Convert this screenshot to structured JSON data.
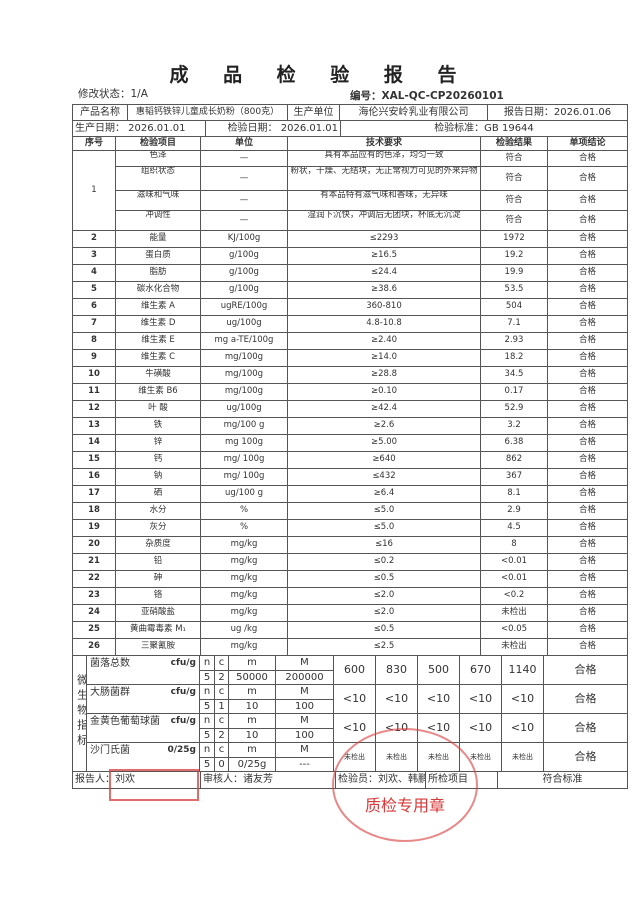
{
  "title": "成 品 检 验 报 告",
  "revision": "修改状态：1/A",
  "code": "编号：XAL-QC-CP20260101",
  "header": {
    "product_label": "产品名称",
    "product": "惠韬钙铁锌儿童成长奶粉（800克）",
    "maker_label": "生产单位",
    "maker": "海伦兴安岭乳业有限公司",
    "report_date": "报告日期：2026.01.06",
    "prod_date": "生产日期：  2026.01.01",
    "insp_date": "检验日期：  2026.01.01",
    "standard": "检验标准：GB 19644"
  },
  "columns": [
    "序号",
    "检验项目",
    "单位",
    "技术要求",
    "检验结果",
    "单项结论"
  ],
  "sensory": {
    "no": "1",
    "items": [
      {
        "item": "色泽",
        "unit": "—",
        "req": "具有本品应有的色泽，均匀一致",
        "result": "符合",
        "conclusion": "合格"
      },
      {
        "item": "组织状态",
        "unit": "—",
        "req": "粉状，干燥、无结块，无正常视力可见的外来异物",
        "result": "符合",
        "conclusion": "合格"
      },
      {
        "item": "滋味和气味",
        "unit": "—",
        "req": "有本品特有滋气味和香味，无异味",
        "result": "符合",
        "conclusion": "合格"
      },
      {
        "item": "冲调性",
        "unit": "—",
        "req": "湿润下沉快，冲调后无团块，杯底无沉淀",
        "result": "符合",
        "conclusion": "合格"
      }
    ]
  },
  "rows": [
    {
      "no": "2",
      "item": "能量",
      "unit": "KJ/100g",
      "req": "≤2293",
      "result": "1972",
      "conclusion": "合格"
    },
    {
      "no": "3",
      "item": "蛋白质",
      "unit": "g/100g",
      "req": "≥16.5",
      "result": "19.2",
      "conclusion": "合格"
    },
    {
      "no": "4",
      "item": "脂肪",
      "unit": "g/100g",
      "req": "≤24.4",
      "result": "19.9",
      "conclusion": "合格"
    },
    {
      "no": "5",
      "item": "碳水化合物",
      "unit": "g/100g",
      "req": "≥38.6",
      "result": "53.5",
      "conclusion": "合格"
    },
    {
      "no": "6",
      "item": "维生素 A",
      "unit": "ugRE/100g",
      "req": "360-810",
      "result": "504",
      "conclusion": "合格"
    },
    {
      "no": "7",
      "item": "维生素 D",
      "unit": "ug/100g",
      "req": "4.8-10.8",
      "result": "7.1",
      "conclusion": "合格"
    },
    {
      "no": "8",
      "item": "维生素 E",
      "unit": "mg a-TE/100g",
      "req": "≥2.40",
      "result": "2.93",
      "conclusion": "合格"
    },
    {
      "no": "9",
      "item": "维生素 C",
      "unit": "mg/100g",
      "req": "≥14.0",
      "result": "18.2",
      "conclusion": "合格"
    },
    {
      "no": "10",
      "item": "牛磺酸",
      "unit": "mg/100g",
      "req": "≥28.8",
      "result": "34.5",
      "conclusion": "合格"
    },
    {
      "no": "11",
      "item": "维生素 B6",
      "unit": "mg/100g",
      "req": "≥0.10",
      "result": "0.17",
      "conclusion": "合格"
    },
    {
      "no": "12",
      "item": "叶 酸",
      "unit": "ug/100g",
      "req": "≥42.4",
      "result": "52.9",
      "conclusion": "合格"
    },
    {
      "no": "13",
      "item": "铁",
      "unit": "mg/100 g",
      "req": "≥2.6",
      "result": "3.2",
      "conclusion": "合格"
    },
    {
      "no": "14",
      "item": "锌",
      "unit": "mg 100g",
      "req": "≥5.00",
      "result": "6.38",
      "conclusion": "合格"
    },
    {
      "no": "15",
      "item": "钙",
      "unit": "mg/ 100g",
      "req": "≥640",
      "result": "862",
      "conclusion": "合格"
    },
    {
      "no": "16",
      "item": "钠",
      "unit": "mg/ 100g",
      "req": "≤432",
      "result": "367",
      "conclusion": "合格"
    },
    {
      "no": "17",
      "item": "硒",
      "unit": "ug/100 g",
      "req": "≥6.4",
      "result": "8.1",
      "conclusion": "合格"
    },
    {
      "no": "18",
      "item": "水分",
      "unit": "%",
      "req": "≤5.0",
      "result": "2.9",
      "conclusion": "合格"
    },
    {
      "no": "19",
      "item": "灰分",
      "unit": "%",
      "req": "≤5.0",
      "result": "4.5",
      "conclusion": "合格"
    },
    {
      "no": "20",
      "item": "杂质度",
      "unit": "mg/kg",
      "req": "≤16",
      "result": "8",
      "conclusion": "合格"
    },
    {
      "no": "21",
      "item": "铅",
      "unit": "mg/kg",
      "req": "≤0.2",
      "result": "<0.01",
      "conclusion": "合格"
    },
    {
      "no": "22",
      "item": "砷",
      "unit": "mg/kg",
      "req": "≤0.5",
      "result": "<0.01",
      "conclusion": "合格"
    },
    {
      "no": "23",
      "item": "铬",
      "unit": "mg/kg",
      "req": "≤2.0",
      "result": "<0.2",
      "conclusion": "合格"
    },
    {
      "no": "24",
      "item": "亚硝酸盐",
      "unit": "mg/kg",
      "req": "≤2.0",
      "result": "未检出",
      "conclusion": "合格"
    },
    {
      "no": "25",
      "item": "黄曲霉毒素 M₁",
      "unit": "ug /kg",
      "req": "≤0.5",
      "result": "<0.05",
      "conclusion": "合格"
    },
    {
      "no": "26",
      "item": "三聚氰胺",
      "unit": "mg/kg",
      "req": "≤2.5",
      "result": "未检出",
      "conclusion": "合格"
    }
  ],
  "micro": {
    "label": "微生物指标",
    "plan_headers": [
      "n",
      "c",
      "m",
      "M"
    ],
    "items": [
      {
        "name": "菌落总数",
        "unit": "cfu/g",
        "plan": [
          "5",
          "2",
          "50000",
          "200000"
        ],
        "results": [
          "600",
          "830",
          "500",
          "670",
          "1140"
        ],
        "conclusion": "合格"
      },
      {
        "name": "大肠菌群",
        "unit": "cfu/g",
        "plan": [
          "5",
          "1",
          "10",
          "100"
        ],
        "results": [
          "<10",
          "<10",
          "<10",
          "<10",
          "<10"
        ],
        "conclusion": "合格"
      },
      {
        "name": "金黄色葡萄球菌",
        "unit": "cfu/g",
        "plan": [
          "5",
          "2",
          "10",
          "100"
        ],
        "results": [
          "<10",
          "<10",
          "<10",
          "<10",
          "<10"
        ],
        "conclusion": "合格"
      },
      {
        "name": "沙门氏菌",
        "unit": "0/25g",
        "plan": [
          "5",
          "0",
          "0/25g",
          "---"
        ],
        "results": [
          "未检出",
          "未检出",
          "未检出",
          "未检出",
          "未检出"
        ],
        "conclusion": "合格"
      }
    ]
  },
  "footer": {
    "reporter": "报告人：刘欢",
    "reviewer": "审核人：诸友芳",
    "inspector": "检验员：刘欢、韩鹏",
    "scope": "所检项目",
    "verdict": "符合标准"
  },
  "stamps": {
    "qualified": "合格",
    "seal_text": "质检专用章",
    "color": "#d83a3a"
  }
}
